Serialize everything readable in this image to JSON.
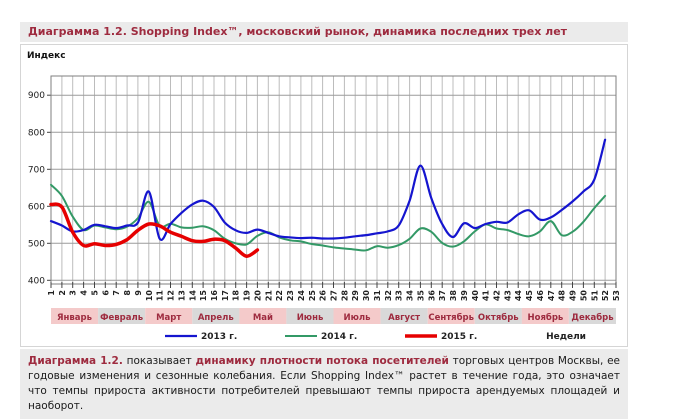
{
  "title": "Диаграмма 1.2. Shopping Index™, московский рынок, динамика последних трех лет",
  "chart_data": {
    "type": "line",
    "title": "Диаграмма 1.2. Shopping Index™, московский рынок, динамика последних трех лет",
    "y_axis_title": "Индекс",
    "x_axis_unit": "Недели",
    "weeks": 53,
    "y_ticks": [
      400,
      500,
      600,
      700,
      800,
      900
    ],
    "ylim": [
      390,
      952
    ],
    "grid": true,
    "legend_position": "bottom",
    "months": [
      "Январь",
      "Февраль",
      "Март",
      "Апрель",
      "Май",
      "Июнь",
      "Июль",
      "Август",
      "Сентябрь",
      "Октябрь",
      "Ноябрь",
      "Декабрь"
    ],
    "band_colors": [
      "#f4caca",
      "#d9d9d9"
    ],
    "month_label_color": "#9e2b3f",
    "series": [
      {
        "name": "2013 г.",
        "color": "#1515cf",
        "width": 2.2,
        "values": [
          560,
          548,
          532,
          536,
          550,
          546,
          541,
          548,
          556,
          640,
          512,
          552,
          582,
          605,
          615,
          598,
          556,
          535,
          528,
          537,
          528,
          519,
          516,
          514,
          515,
          513,
          513,
          515,
          519,
          522,
          527,
          532,
          548,
          615,
          710,
          622,
          552,
          517,
          554,
          541,
          552,
          558,
          556,
          578,
          589,
          564,
          570,
          590,
          613,
          640,
          672,
          780
        ]
      },
      {
        "name": "2014 г.",
        "color": "#339966",
        "width": 2,
        "values": [
          658,
          628,
          572,
          536,
          548,
          543,
          538,
          545,
          568,
          612,
          547,
          553,
          543,
          542,
          546,
          535,
          512,
          500,
          497,
          520,
          530,
          516,
          508,
          505,
          498,
          494,
          489,
          486,
          483,
          481,
          492,
          488,
          495,
          512,
          540,
          531,
          501,
          491,
          505,
          532,
          551,
          540,
          536,
          525,
          519,
          532,
          560,
          522,
          531,
          558,
          595,
          628
        ]
      },
      {
        "name": "2015 г.",
        "color": "#e60000",
        "width": 3.5,
        "values": [
          605,
          598,
          530,
          494,
          499,
          494,
          497,
          510,
          535,
          552,
          547,
          530,
          519,
          507,
          505,
          511,
          507,
          487,
          465,
          482
        ]
      }
    ]
  },
  "caption": {
    "lead": "Диаграмма 1.2.",
    "text1": "показывает",
    "highlight": "динамику плотности потока посетителей",
    "text2": "торговых центров Москвы, ее годовые изменения и сезонные колебания. Если Shopping Index™ растет в течение года, это означает что темпы прироста активности потребителей превышают темпы прироста арендуемых площадей и наоборот."
  },
  "colors": {
    "accent_red": "#9e2b3f",
    "panel_gray": "#ebebeb",
    "band_pink": "#f4caca",
    "band_gray": "#d9d9d9",
    "line_2013": "#1515cf",
    "line_2014": "#339966",
    "line_2015": "#e60000"
  }
}
